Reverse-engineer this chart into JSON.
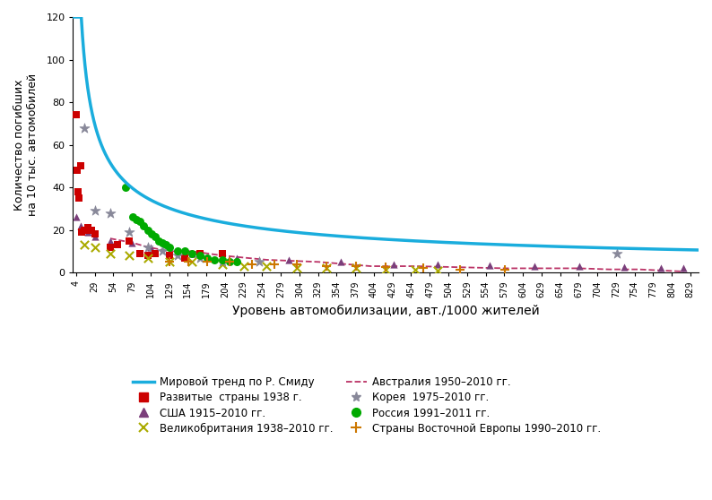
{
  "xlabel": "Уровень автомобилизации, авт./1000 жителей",
  "ylabel": "Количество погибших\nна 10 тыс. автомобилей",
  "ylim": [
    0,
    120
  ],
  "xlim": [
    0,
    840
  ],
  "xticks": [
    4,
    29,
    54,
    79,
    104,
    129,
    154,
    179,
    204,
    229,
    254,
    279,
    304,
    329,
    354,
    379,
    404,
    429,
    454,
    479,
    504,
    529,
    554,
    579,
    604,
    629,
    654,
    679,
    704,
    729,
    754,
    779,
    804,
    829
  ],
  "yticks": [
    0,
    20,
    40,
    60,
    80,
    100,
    120
  ],
  "smeed_a": 460,
  "smeed_b": -0.56,
  "usa_x": [
    4,
    10,
    20,
    30,
    50,
    79,
    104,
    160,
    220,
    290,
    360,
    430,
    490,
    560,
    620,
    680,
    740,
    790,
    820
  ],
  "usa_y": [
    26,
    22,
    19,
    17,
    15,
    14,
    12,
    9,
    7,
    6,
    5,
    4,
    4,
    3.5,
    3,
    3,
    2.5,
    2,
    2
  ],
  "developed_x": [
    4,
    5,
    7,
    8,
    10,
    12,
    15,
    20,
    25,
    30,
    50,
    60,
    75,
    90,
    100,
    110,
    130,
    150,
    170,
    200
  ],
  "developed_y": [
    74,
    48,
    38,
    35,
    50,
    19,
    20,
    21,
    20,
    18,
    12,
    13,
    15,
    9,
    8,
    9,
    8,
    7,
    9,
    9
  ],
  "uk_x": [
    15,
    30,
    50,
    75,
    100,
    130,
    160,
    200,
    230,
    260,
    300,
    340,
    380,
    420,
    460,
    490
  ],
  "uk_y": [
    13,
    12,
    9,
    8,
    7,
    5,
    5,
    4,
    3,
    3,
    2,
    2,
    2,
    1.5,
    1.5,
    1
  ],
  "korea_x": [
    15,
    30,
    50,
    75,
    100,
    120,
    140,
    170,
    200,
    250,
    730
  ],
  "korea_y": [
    68,
    29,
    28,
    19,
    12,
    10,
    8,
    7,
    5,
    5,
    9
  ],
  "australia_x": [
    50,
    80,
    100,
    130,
    160,
    200,
    260,
    330,
    400,
    460,
    520,
    580,
    640,
    680,
    720,
    760,
    790,
    820
  ],
  "australia_y": [
    16,
    14,
    12,
    10,
    10,
    8,
    6,
    5,
    3,
    3,
    2.5,
    2,
    2,
    2,
    1.5,
    1.5,
    1,
    0.5
  ],
  "russia_x": [
    70,
    80,
    85,
    90,
    95,
    100,
    105,
    110,
    115,
    120,
    125,
    130,
    140,
    150,
    160,
    170,
    180,
    190,
    200,
    210,
    220
  ],
  "russia_y": [
    40,
    26,
    25,
    24,
    22,
    20,
    18,
    17,
    15,
    14,
    13,
    12,
    10,
    10,
    9,
    8,
    7,
    6,
    6,
    5,
    5
  ],
  "eastern_europe_x": [
    130,
    155,
    180,
    210,
    240,
    270,
    300,
    340,
    380,
    420,
    470,
    520,
    580
  ],
  "eastern_europe_y": [
    5,
    5,
    5,
    5,
    4,
    4,
    4,
    3,
    3,
    2.5,
    2,
    1.5,
    1.5
  ],
  "colors": {
    "smeed": "#1AADDD",
    "usa": "#7B3F7B",
    "developed": "#CC0000",
    "uk": "#AAAA00",
    "korea": "#888899",
    "australia": "#BB3366",
    "russia": "#00AA00",
    "eastern_europe": "#CC7700"
  }
}
